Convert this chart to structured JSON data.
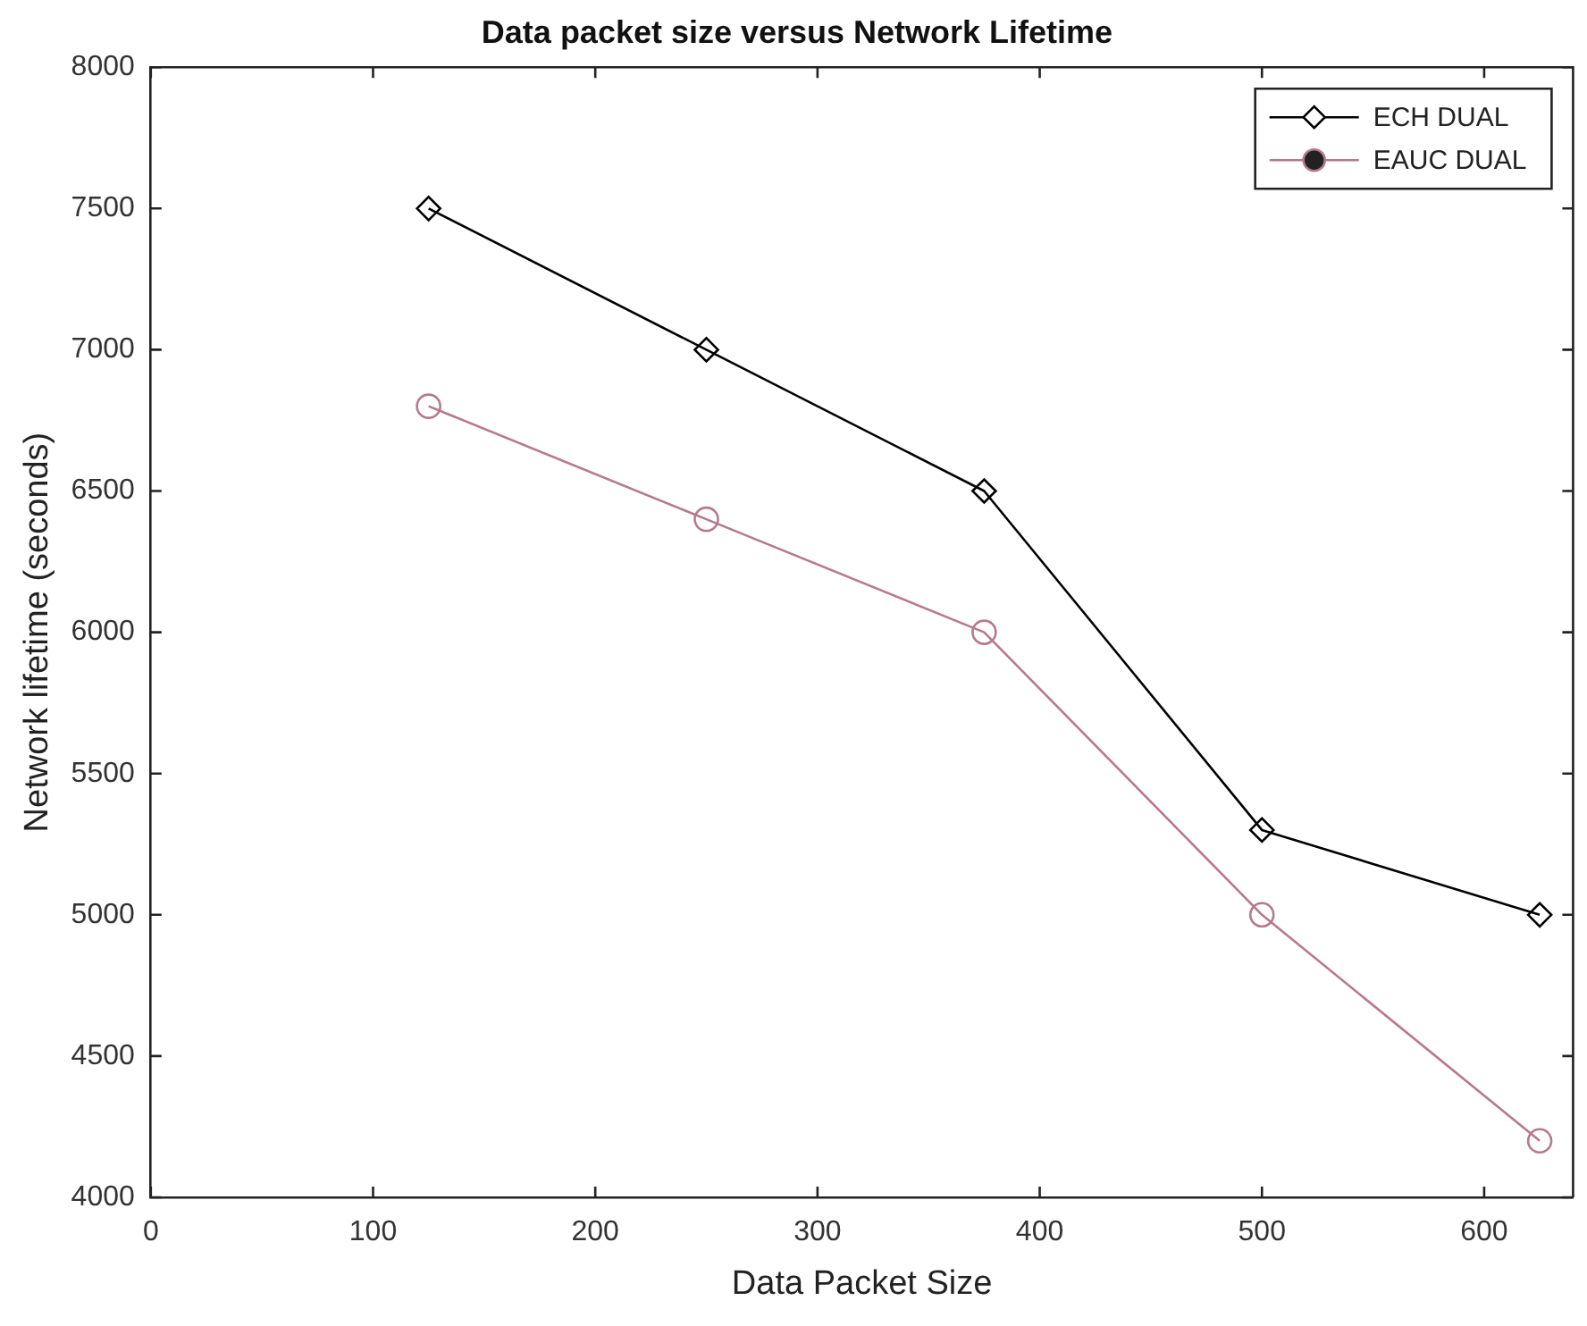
{
  "chart_data": {
    "type": "line",
    "title": "Data packet size versus Network Lifetime",
    "xlabel": "Data Packet Size",
    "ylabel": "Network lifetime (seconds)",
    "x": [
      125,
      250,
      375,
      500,
      625
    ],
    "series": [
      {
        "name": "ECH DUAL",
        "color": "#000000",
        "marker": "diamond",
        "values": [
          7500,
          7000,
          6500,
          5300,
          5000
        ]
      },
      {
        "name": "EAUC DUAL",
        "color": "#b8788e",
        "marker": "circle",
        "values": [
          6800,
          6400,
          6000,
          5000,
          4200
        ]
      }
    ],
    "xlim": [
      0,
      640
    ],
    "xticks": [
      0,
      100,
      200,
      300,
      400,
      500,
      600
    ],
    "ylim": [
      4000,
      8000
    ],
    "yticks": [
      4000,
      4500,
      5000,
      5500,
      6000,
      6500,
      7000,
      7500,
      8000
    ],
    "grid": false,
    "legend": "top right",
    "line_style": "solid"
  }
}
